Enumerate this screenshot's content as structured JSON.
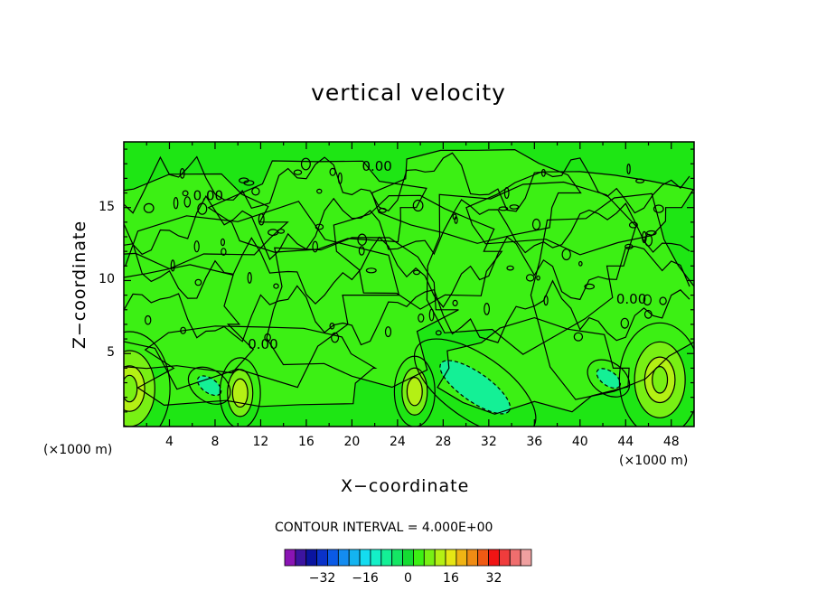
{
  "chart_data": {
    "type": "contour",
    "title": "vertical velocity",
    "xlabel": "X−coordinate",
    "ylabel": "Z−coordinate",
    "x_unit_label": "(×1000 m)",
    "z_unit_label": "(×1000 m)",
    "xlim": [
      0,
      50
    ],
    "ylim": [
      0,
      19.5
    ],
    "x_ticks": [
      4,
      8,
      12,
      16,
      20,
      24,
      28,
      32,
      36,
      40,
      44,
      48
    ],
    "y_ticks": [
      5,
      10,
      15
    ],
    "contour_interval_text": "CONTOUR INTERVAL = 4.000E+00",
    "contour_labels": [
      {
        "text": "0.00",
        "x": 12.2,
        "y": 5.6
      },
      {
        "text": "0.00",
        "x": 7.4,
        "y": 15.8
      },
      {
        "text": "0.00",
        "x": 22.2,
        "y": 17.8
      },
      {
        "text": "0.00",
        "x": 44.5,
        "y": 8.7
      }
    ],
    "features": [
      {
        "kind": "positive",
        "x": 0.5,
        "y": 2.6,
        "level": 8
      },
      {
        "kind": "positive",
        "x": 47.0,
        "y": 3.2,
        "level": 8
      },
      {
        "kind": "positive",
        "x": 25.5,
        "y": 2.4,
        "level": 4
      },
      {
        "kind": "positive",
        "x": 10.2,
        "y": 2.3,
        "level": 4
      },
      {
        "kind": "negative",
        "x": 30.8,
        "y": 2.7,
        "level": -4
      },
      {
        "kind": "negative",
        "x": 7.5,
        "y": 2.8,
        "level": -4
      },
      {
        "kind": "negative",
        "x": 42.5,
        "y": 3.3,
        "level": -4
      }
    ],
    "colorbar": {
      "colors": [
        "#8a14b4",
        "#3c14a0",
        "#0a14a0",
        "#0a32c8",
        "#0a5ae6",
        "#148cf0",
        "#14b4f0",
        "#14dcf0",
        "#14f0c8",
        "#14f096",
        "#14e664",
        "#14dc32",
        "#3cf014",
        "#78f014",
        "#b4f014",
        "#e6e614",
        "#f0b414",
        "#f08c14",
        "#f05a14",
        "#f01414",
        "#f03c3c",
        "#f06e6e",
        "#f0a0a0"
      ],
      "tick_labels": [
        "−32",
        "−16",
        "0",
        "16",
        "32"
      ],
      "tick_values": [
        -32,
        -16,
        0,
        16,
        32
      ]
    }
  }
}
